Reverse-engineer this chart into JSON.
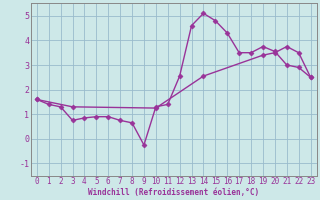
{
  "xlabel": "Windchill (Refroidissement éolien,°C)",
  "bg_color": "#cde8e8",
  "line_color": "#993399",
  "grid_color": "#99bbcc",
  "xlim": [
    -0.5,
    23.5
  ],
  "ylim": [
    -1.5,
    5.5
  ],
  "yticks": [
    -1,
    0,
    1,
    2,
    3,
    4,
    5
  ],
  "xticks": [
    0,
    1,
    2,
    3,
    4,
    5,
    6,
    7,
    8,
    9,
    10,
    11,
    12,
    13,
    14,
    15,
    16,
    17,
    18,
    19,
    20,
    21,
    22,
    23
  ],
  "line1_x": [
    0,
    1,
    2,
    3,
    4,
    5,
    6,
    7,
    8,
    9,
    10,
    11,
    12,
    13,
    14,
    15,
    16,
    17,
    18,
    19,
    20,
    21,
    22,
    23
  ],
  "line1_y": [
    1.6,
    1.4,
    1.3,
    0.75,
    0.85,
    0.9,
    0.9,
    0.75,
    0.65,
    -0.25,
    1.3,
    1.4,
    2.55,
    4.6,
    5.1,
    4.8,
    4.3,
    3.5,
    3.5,
    3.75,
    3.55,
    3.0,
    2.9,
    2.5
  ],
  "line2_x": [
    0,
    3,
    10,
    14,
    19,
    20,
    21,
    22,
    23
  ],
  "line2_y": [
    1.6,
    1.3,
    1.25,
    2.55,
    3.4,
    3.5,
    3.75,
    3.5,
    2.5
  ],
  "marker": "D",
  "markersize": 2.5,
  "linewidth": 1.0,
  "tick_fontsize": 5.5,
  "xlabel_fontsize": 5.5
}
